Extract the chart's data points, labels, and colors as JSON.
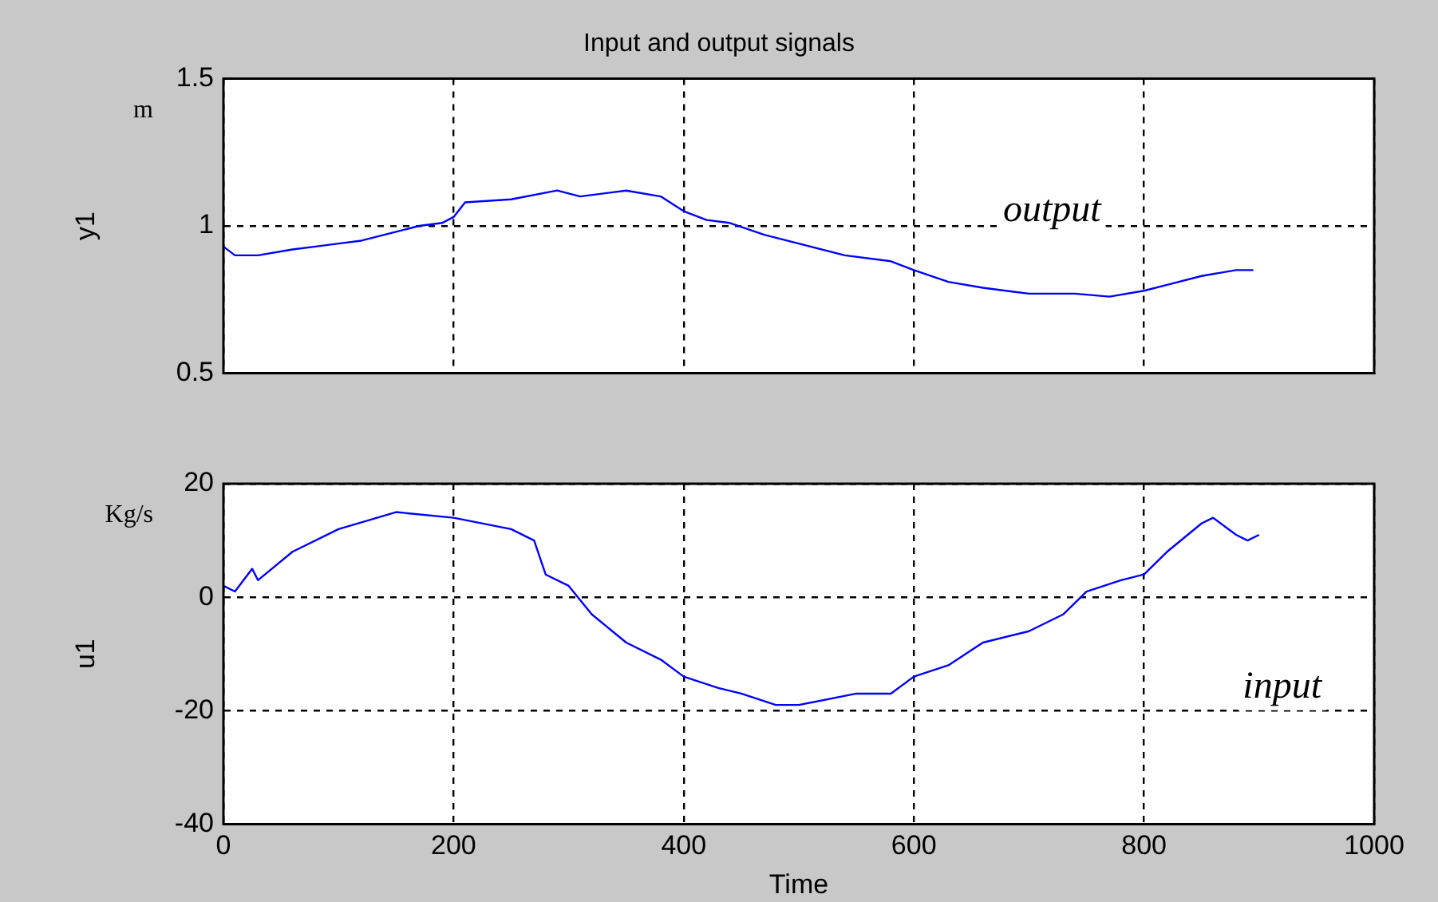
{
  "chart_data": [
    {
      "type": "line",
      "title": "Input and output signals",
      "ylabel": "y1",
      "annotations": [
        "m",
        "output"
      ],
      "xlim": [
        0,
        1000
      ],
      "xticks": [
        0,
        200,
        400,
        600,
        800,
        1000
      ],
      "ylim": [
        0.5,
        1.5
      ],
      "yticks": [
        0.5,
        1,
        1.5
      ],
      "tick_labels": "y",
      "grid": true,
      "legend": false,
      "marker": "none",
      "line_style": "solid",
      "series": [
        {
          "color": "#0000ff",
          "x": [
            0,
            10,
            30,
            60,
            80,
            100,
            120,
            150,
            170,
            190,
            200,
            210,
            250,
            290,
            310,
            350,
            380,
            400,
            420,
            440,
            470,
            500,
            540,
            580,
            600,
            630,
            660,
            700,
            740,
            770,
            800,
            820,
            850,
            880,
            895
          ],
          "values": [
            0.93,
            0.9,
            0.9,
            0.92,
            0.93,
            0.94,
            0.95,
            0.98,
            1.0,
            1.01,
            1.03,
            1.08,
            1.09,
            1.12,
            1.1,
            1.12,
            1.1,
            1.05,
            1.02,
            1.01,
            0.97,
            0.94,
            0.9,
            0.88,
            0.85,
            0.81,
            0.79,
            0.77,
            0.77,
            0.76,
            0.78,
            0.8,
            0.83,
            0.85,
            0.85
          ]
        }
      ]
    },
    {
      "type": "line",
      "xlabel": "Time",
      "ylabel": "u1",
      "annotations": [
        "Kg/s",
        "input"
      ],
      "xlim": [
        0,
        1000
      ],
      "xticks": [
        0,
        200,
        400,
        600,
        800,
        1000
      ],
      "ylim": [
        -40,
        20
      ],
      "yticks": [
        -40,
        -20,
        0,
        20
      ],
      "grid": true,
      "legend": false,
      "marker": "none",
      "line_style": "solid",
      "series": [
        {
          "color": "#0000ff",
          "x": [
            0,
            10,
            25,
            30,
            60,
            100,
            150,
            200,
            250,
            270,
            280,
            300,
            320,
            350,
            380,
            400,
            430,
            450,
            480,
            500,
            550,
            580,
            600,
            630,
            660,
            700,
            730,
            750,
            780,
            800,
            820,
            850,
            860,
            880,
            890,
            900
          ],
          "values": [
            2,
            1,
            5,
            3,
            8,
            12,
            15,
            14,
            12,
            10,
            4,
            2,
            -3,
            -8,
            -11,
            -14,
            -16,
            -17,
            -19,
            -19,
            -17,
            -17,
            -14,
            -12,
            -8,
            -6,
            -3,
            1,
            3,
            4,
            8,
            13,
            14,
            11,
            10,
            11
          ]
        }
      ]
    }
  ]
}
